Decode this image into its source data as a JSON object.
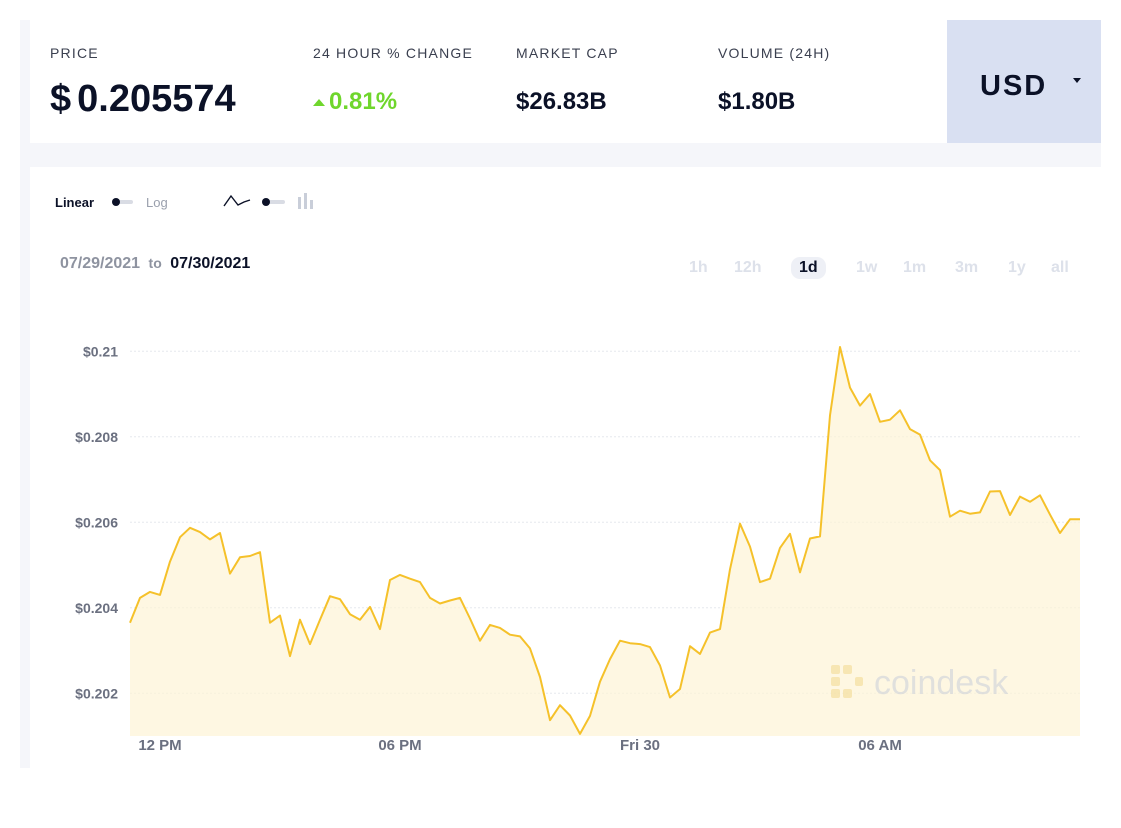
{
  "stats": {
    "price": {
      "label": "PRICE",
      "currency_symbol": "$",
      "value": "0.205574"
    },
    "change": {
      "label": "24 HOUR % CHANGE",
      "value": "0.81%",
      "direction": "up",
      "color": "#6fd62c"
    },
    "market_cap": {
      "label": "MARKET CAP",
      "value": "$26.83B"
    },
    "volume": {
      "label": "VOLUME (24H)",
      "value": "$1.80B"
    }
  },
  "currency": {
    "selected": "USD",
    "icon": "caret-down-icon"
  },
  "controls": {
    "scale_linear": "Linear",
    "scale_log": "Log",
    "scale_selected": "Linear",
    "line_icon": "line-chart-icon",
    "candle_icon": "candlestick-icon",
    "chart_style_selected": "line"
  },
  "date_range": {
    "from": "07/29/2021",
    "to_word": "to",
    "to": "07/30/2021"
  },
  "timeframes": [
    "1h",
    "12h",
    "1d",
    "1w",
    "1m",
    "3m",
    "1y",
    "all"
  ],
  "timeframe_selected": "1d",
  "watermark": "coindesk",
  "colors": {
    "line": "#f5c12a",
    "fill": "#fdf3d6",
    "accent_panel": "#d9e0f2",
    "positive": "#6fd62c"
  },
  "chart_data": {
    "type": "area",
    "series": [
      {
        "values": [
          0.20365,
          0.20423,
          0.20437,
          0.2043,
          0.20508,
          0.20565,
          0.20587,
          0.20577,
          0.2056,
          0.20575,
          0.2048,
          0.20518,
          0.20521,
          0.2053,
          0.20365,
          0.20382,
          0.20287,
          0.20372,
          0.20315,
          0.20372,
          0.20427,
          0.2042,
          0.20385,
          0.20372,
          0.20402,
          0.2035,
          0.20465,
          0.20477,
          0.20468,
          0.2046,
          0.20423,
          0.2041,
          0.20417,
          0.20423,
          0.20375,
          0.20323,
          0.2036,
          0.20353,
          0.20337,
          0.20333,
          0.20305,
          0.20238,
          0.20137,
          0.20172,
          0.20148,
          0.20105,
          0.20147,
          0.20227,
          0.2028,
          0.20323,
          0.20317,
          0.20315,
          0.20308,
          0.20265,
          0.2019,
          0.2021,
          0.2031,
          0.20292,
          0.20342,
          0.2035,
          0.2049,
          0.20597,
          0.20543,
          0.2046,
          0.20468,
          0.2054,
          0.20573,
          0.20483,
          0.20562,
          0.20567,
          0.2085,
          0.2101,
          0.20915,
          0.20873,
          0.209,
          0.20835,
          0.2084,
          0.20862,
          0.20818,
          0.20805,
          0.20745,
          0.20722,
          0.20613,
          0.20627,
          0.2062,
          0.20623,
          0.20672,
          0.20673,
          0.20617,
          0.2066,
          0.20648,
          0.20663,
          0.20618,
          0.20575,
          0.20607,
          0.20607
        ]
      }
    ],
    "x_ticks": [
      "12 PM",
      "06 PM",
      "Fri 30",
      "06 AM"
    ],
    "y_ticks": [
      "$0.21",
      "$0.208",
      "$0.206",
      "$0.204",
      "$0.202"
    ],
    "y_tick_values": [
      0.21,
      0.208,
      0.206,
      0.204,
      0.202
    ],
    "ylim": [
      0.201,
      0.2112
    ],
    "grid": true,
    "legend": "none"
  }
}
